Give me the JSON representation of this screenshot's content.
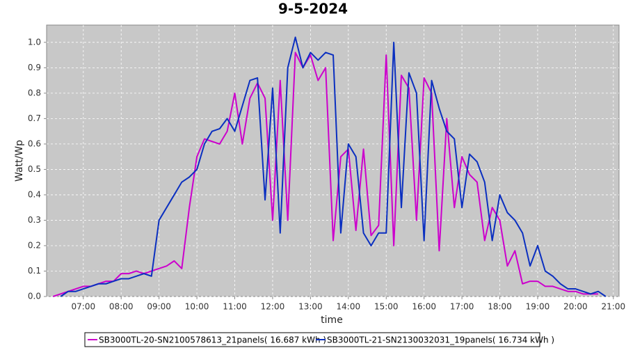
{
  "chart_data": {
    "type": "line",
    "title": "9-5-2024",
    "x_label": "time",
    "y_label": "Watt/Wp",
    "x": [
      6.2,
      6.4,
      6.6,
      6.8,
      7.0,
      7.2,
      7.4,
      7.6,
      7.8,
      8.0,
      8.2,
      8.4,
      8.6,
      8.8,
      9.0,
      9.2,
      9.4,
      9.6,
      9.8,
      10.0,
      10.2,
      10.4,
      10.6,
      10.8,
      11.0,
      11.2,
      11.4,
      11.6,
      11.8,
      12.0,
      12.2,
      12.4,
      12.6,
      12.8,
      13.0,
      13.2,
      13.4,
      13.6,
      13.8,
      14.0,
      14.2,
      14.4,
      14.6,
      14.8,
      15.0,
      15.2,
      15.4,
      15.6,
      15.8,
      16.0,
      16.2,
      16.4,
      16.6,
      16.8,
      17.0,
      17.2,
      17.4,
      17.6,
      17.8,
      18.0,
      18.2,
      18.4,
      18.6,
      18.8,
      19.0,
      19.2,
      19.4,
      19.6,
      19.8,
      20.0,
      20.2,
      20.4,
      20.6,
      20.8
    ],
    "series": [
      {
        "name": "SB3000TL-20-SN2100578613_21panels( 16.687 kWh )",
        "color": "#cc00cc",
        "values": [
          0,
          0.01,
          0.02,
          0.03,
          0.04,
          0.04,
          0.05,
          0.06,
          0.06,
          0.09,
          0.09,
          0.1,
          0.09,
          0.1,
          0.11,
          0.12,
          0.14,
          0.11,
          0.35,
          0.55,
          0.62,
          0.61,
          0.6,
          0.65,
          0.8,
          0.6,
          0.78,
          0.84,
          0.78,
          0.3,
          0.85,
          0.3,
          0.96,
          0.9,
          0.95,
          0.85,
          0.9,
          0.22,
          0.55,
          0.58,
          0.26,
          0.58,
          0.24,
          0.28,
          0.95,
          0.2,
          0.87,
          0.82,
          0.3,
          0.86,
          0.8,
          0.18,
          0.7,
          0.35,
          0.55,
          0.48,
          0.45,
          0.22,
          0.35,
          0.3,
          0.12,
          0.18,
          0.05,
          0.06,
          0.06,
          0.04,
          0.04,
          0.03,
          0.02,
          0.02,
          0.01,
          0.01,
          0.01,
          null
        ]
      },
      {
        "name": "SB3000TL-21-SN2130032031_19panels( 16.734 kWh )",
        "color": "#0a2fc0",
        "values": [
          null,
          0,
          0.02,
          0.02,
          0.03,
          0.04,
          0.05,
          0.05,
          0.06,
          0.07,
          0.07,
          0.08,
          0.09,
          0.08,
          0.3,
          0.35,
          0.4,
          0.45,
          0.47,
          0.5,
          0.6,
          0.65,
          0.66,
          0.7,
          0.65,
          0.75,
          0.85,
          0.86,
          0.38,
          0.82,
          0.25,
          0.9,
          1.02,
          0.9,
          0.96,
          0.93,
          0.96,
          0.95,
          0.25,
          0.6,
          0.55,
          0.25,
          0.2,
          0.25,
          0.25,
          1.0,
          0.35,
          0.88,
          0.8,
          0.22,
          0.85,
          0.74,
          0.65,
          0.62,
          0.35,
          0.56,
          0.53,
          0.45,
          0.22,
          0.4,
          0.33,
          0.3,
          0.25,
          0.12,
          0.2,
          0.1,
          0.08,
          0.05,
          0.03,
          0.03,
          0.02,
          0.01,
          0.02,
          0
        ]
      }
    ],
    "xlim": [
      6.03,
      21.15
    ],
    "ylim": [
      0,
      1.068
    ],
    "xticks": [
      {
        "value": 7,
        "label": "07:00"
      },
      {
        "value": 8,
        "label": "08:00"
      },
      {
        "value": 9,
        "label": "09:00"
      },
      {
        "value": 10,
        "label": "10:00"
      },
      {
        "value": 11,
        "label": "11:00"
      },
      {
        "value": 12,
        "label": "12:00"
      },
      {
        "value": 13,
        "label": "13:00"
      },
      {
        "value": 14,
        "label": "14:00"
      },
      {
        "value": 15,
        "label": "15:00"
      },
      {
        "value": 16,
        "label": "16:00"
      },
      {
        "value": 17,
        "label": "17:00"
      },
      {
        "value": 18,
        "label": "18:00"
      },
      {
        "value": 19,
        "label": "19:00"
      },
      {
        "value": 20,
        "label": "20:00"
      },
      {
        "value": 21,
        "label": "21:00"
      }
    ],
    "yticks": [
      {
        "value": 0,
        "label": "0.0"
      },
      0.1,
      0.2,
      0.3,
      0.4,
      0.5,
      0.6,
      0.7,
      0.8,
      0.9,
      {
        "value": 1,
        "label": "1.0"
      }
    ],
    "grid": true,
    "legend": "bottom"
  }
}
